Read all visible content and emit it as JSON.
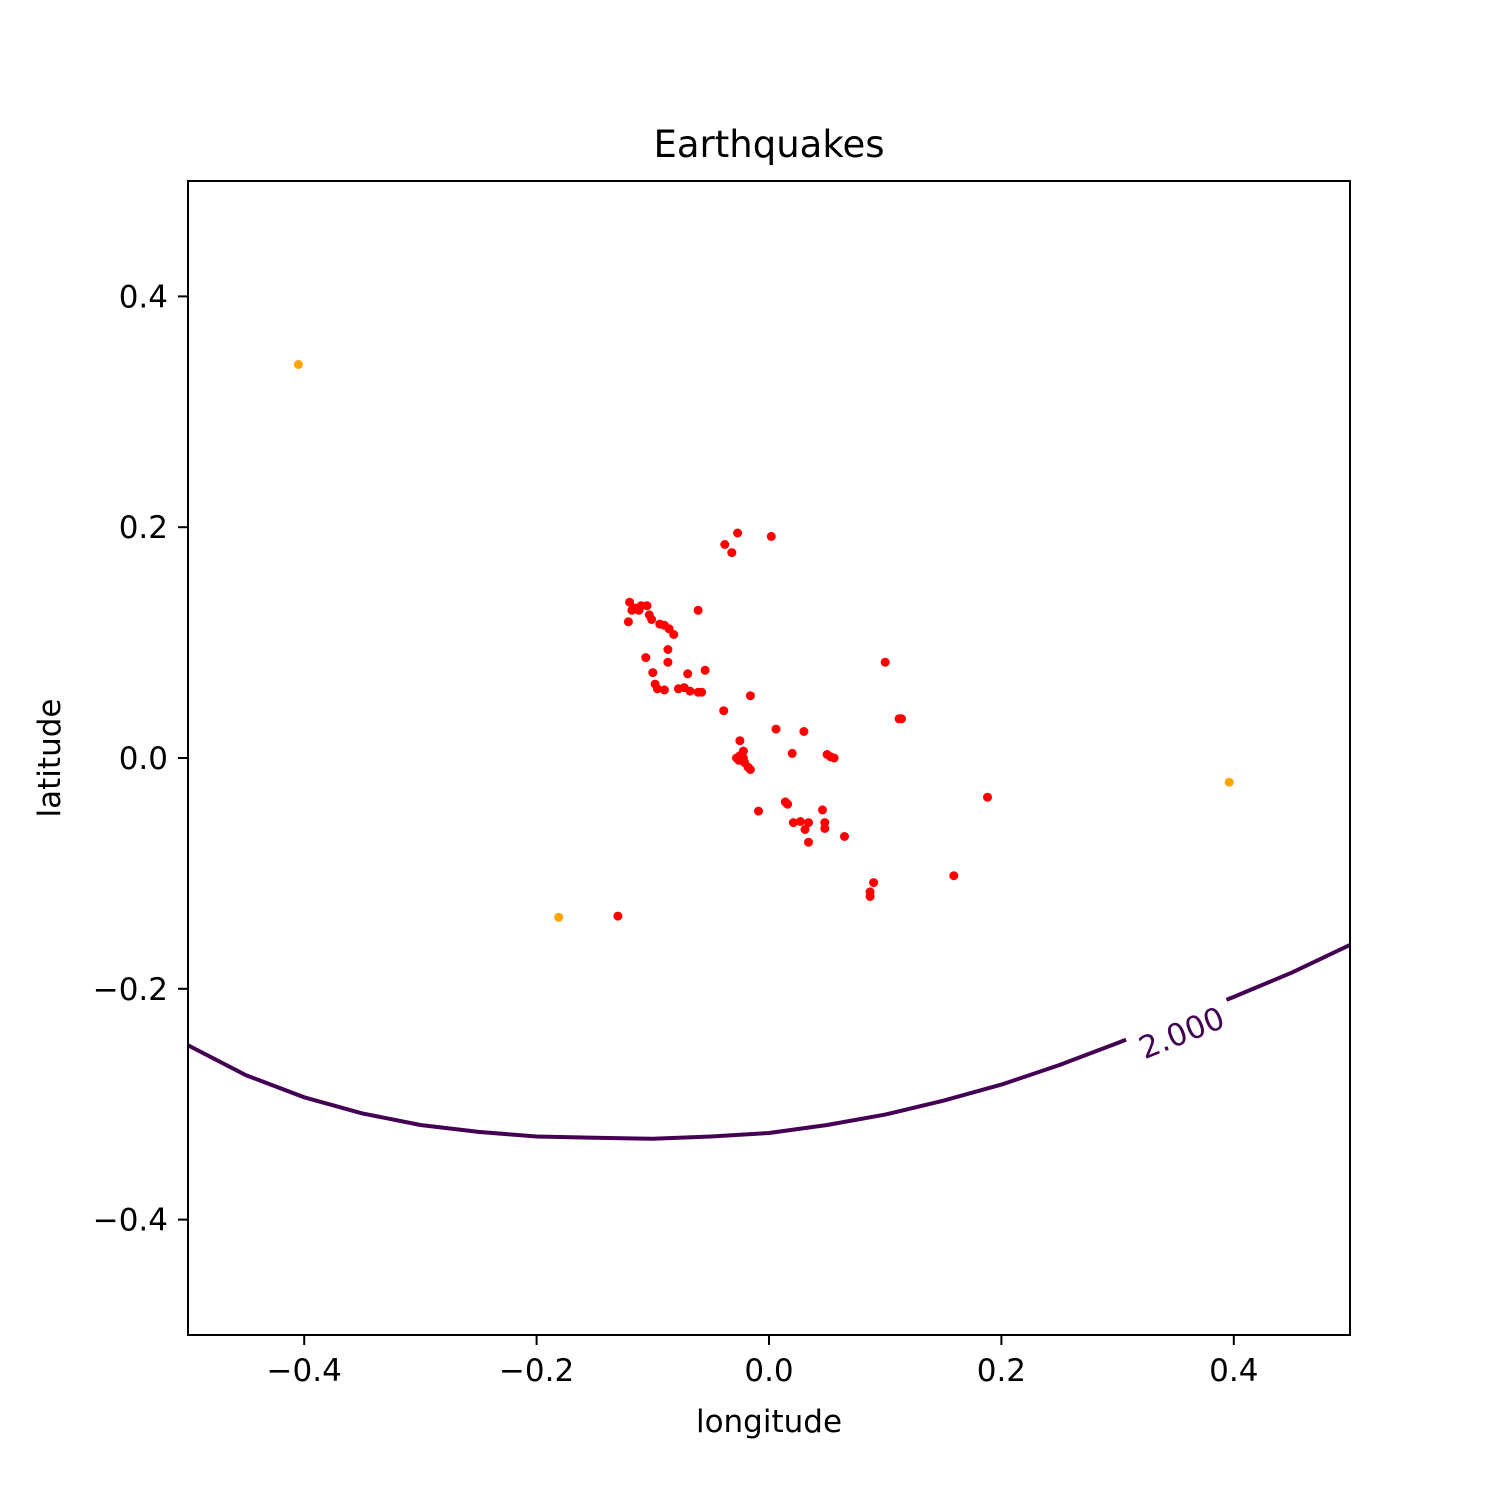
{
  "chart_data": {
    "type": "scatter",
    "title": "Earthquakes",
    "xlabel": "longitude",
    "ylabel": "latitude",
    "xlim": [
      -0.5,
      0.5
    ],
    "ylim": [
      -0.5,
      0.5
    ],
    "grid": false,
    "xticks": [
      {
        "value": -0.4,
        "label": "−0.4"
      },
      {
        "value": -0.2,
        "label": "−0.2"
      },
      {
        "value": 0.0,
        "label": "0.0"
      },
      {
        "value": 0.2,
        "label": "0.2"
      },
      {
        "value": 0.4,
        "label": "0.4"
      }
    ],
    "yticks": [
      {
        "value": 0.4,
        "label": "0.4"
      },
      {
        "value": 0.2,
        "label": "0.2"
      },
      {
        "value": 0.0,
        "label": "0.0"
      },
      {
        "value": -0.2,
        "label": "−0.2"
      },
      {
        "value": -0.4,
        "label": "−0.4"
      }
    ],
    "series": [
      {
        "color": "#ff0000",
        "points": [
          [
            -0.027,
            0.195
          ],
          [
            0.002,
            0.192
          ],
          [
            -0.038,
            0.185
          ],
          [
            -0.032,
            0.178
          ],
          [
            -0.12,
            0.135
          ],
          [
            -0.115,
            0.13
          ],
          [
            -0.11,
            0.132
          ],
          [
            -0.105,
            0.132
          ],
          [
            -0.118,
            0.128
          ],
          [
            -0.112,
            0.128
          ],
          [
            -0.103,
            0.124
          ],
          [
            -0.101,
            0.12
          ],
          [
            -0.121,
            0.118
          ],
          [
            -0.094,
            0.116
          ],
          [
            -0.09,
            0.115
          ],
          [
            -0.086,
            0.112
          ],
          [
            -0.061,
            0.128
          ],
          [
            -0.082,
            0.107
          ],
          [
            -0.087,
            0.094
          ],
          [
            -0.106,
            0.087
          ],
          [
            -0.087,
            0.083
          ],
          [
            -0.1,
            0.074
          ],
          [
            -0.055,
            0.076
          ],
          [
            -0.07,
            0.073
          ],
          [
            -0.098,
            0.064
          ],
          [
            -0.096,
            0.06
          ],
          [
            -0.09,
            0.059
          ],
          [
            -0.078,
            0.06
          ],
          [
            -0.073,
            0.061
          ],
          [
            -0.068,
            0.058
          ],
          [
            -0.061,
            0.057
          ],
          [
            -0.058,
            0.057
          ],
          [
            -0.016,
            0.054
          ],
          [
            -0.039,
            0.041
          ],
          [
            0.1,
            0.083
          ],
          [
            0.114,
            0.034
          ],
          [
            0.112,
            0.034
          ],
          [
            0.006,
            0.025
          ],
          [
            0.03,
            0.023
          ],
          [
            -0.025,
            0.015
          ],
          [
            -0.022,
            0.006
          ],
          [
            -0.025,
            0.002
          ],
          [
            -0.028,
            0.0
          ],
          [
            -0.022,
            0.0
          ],
          [
            -0.026,
            -0.002
          ],
          [
            -0.021,
            -0.004
          ],
          [
            -0.018,
            -0.008
          ],
          [
            -0.016,
            -0.01
          ],
          [
            0.02,
            0.004
          ],
          [
            0.05,
            0.003
          ],
          [
            0.053,
            0.001
          ],
          [
            0.056,
            0.0
          ],
          [
            0.188,
            -0.034
          ],
          [
            0.014,
            -0.038
          ],
          [
            0.016,
            -0.04
          ],
          [
            -0.009,
            -0.046
          ],
          [
            0.046,
            -0.045
          ],
          [
            0.048,
            -0.056
          ],
          [
            0.048,
            -0.061
          ],
          [
            0.021,
            -0.056
          ],
          [
            0.027,
            -0.055
          ],
          [
            0.034,
            -0.056
          ],
          [
            0.031,
            -0.062
          ],
          [
            0.034,
            -0.073
          ],
          [
            0.065,
            -0.068
          ],
          [
            0.09,
            -0.108
          ],
          [
            0.087,
            -0.116
          ],
          [
            0.087,
            -0.12
          ],
          [
            0.159,
            -0.102
          ],
          [
            -0.13,
            -0.137
          ]
        ]
      },
      {
        "color": "#ffa500",
        "points": [
          [
            -0.405,
            0.341
          ],
          [
            -0.181,
            -0.138
          ],
          [
            0.396,
            -0.021
          ]
        ]
      }
    ],
    "contour": {
      "level_label": "2.000",
      "color": "#440154",
      "points": [
        [
          -0.5,
          -0.249
        ],
        [
          -0.45,
          -0.275
        ],
        [
          -0.4,
          -0.294
        ],
        [
          -0.35,
          -0.308
        ],
        [
          -0.3,
          -0.318
        ],
        [
          -0.25,
          -0.324
        ],
        [
          -0.2,
          -0.328
        ],
        [
          -0.15,
          -0.329
        ],
        [
          -0.1,
          -0.33
        ],
        [
          -0.05,
          -0.328
        ],
        [
          0.0,
          -0.325
        ],
        [
          0.05,
          -0.318
        ],
        [
          0.1,
          -0.309
        ],
        [
          0.15,
          -0.297
        ],
        [
          0.2,
          -0.283
        ],
        [
          0.25,
          -0.266
        ],
        [
          0.3,
          -0.247
        ],
        [
          0.35,
          -0.227
        ],
        [
          0.4,
          -0.207
        ],
        [
          0.45,
          -0.186
        ],
        [
          0.5,
          -0.162
        ]
      ],
      "label_at": [
        0.355,
        -0.238
      ]
    }
  }
}
